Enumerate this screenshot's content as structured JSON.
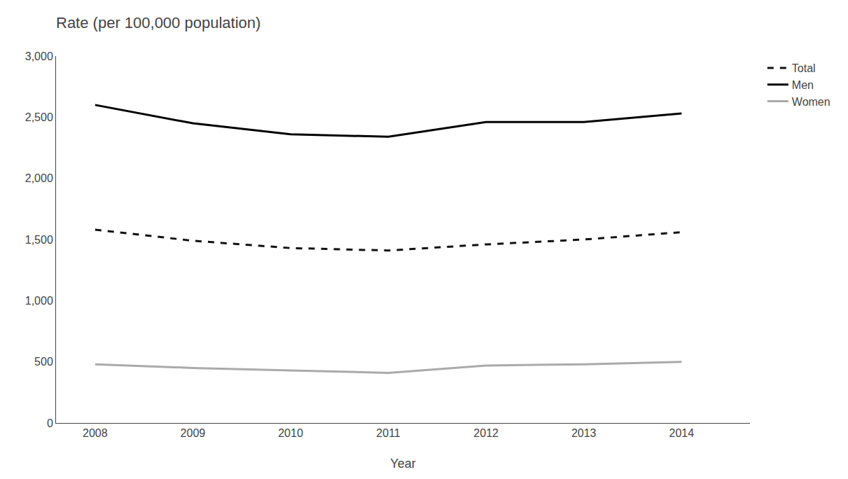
{
  "chart_data": {
    "type": "line",
    "title": "Rate (per 100,000 population)",
    "x_label": "Year",
    "x": [
      2008,
      2009,
      2010,
      2011,
      2012,
      2013,
      2014
    ],
    "series": [
      {
        "name": "Total",
        "color": "#111111",
        "line_style": "dashed",
        "values": [
          1580,
          1490,
          1430,
          1410,
          1460,
          1500,
          1560
        ]
      },
      {
        "name": "Men",
        "color": "#000000",
        "line_style": "solid",
        "values": [
          2600,
          2450,
          2360,
          2340,
          2460,
          2460,
          2530
        ]
      },
      {
        "name": "Women",
        "color": "#aaaaaa",
        "line_style": "solid",
        "values": [
          480,
          450,
          430,
          410,
          470,
          480,
          500
        ]
      }
    ],
    "xlim": [
      2007.6,
      2014.7
    ],
    "xticks": [
      2008,
      2009,
      2010,
      2011,
      2012,
      2013,
      2014
    ],
    "ylim": [
      0,
      3000
    ],
    "yticks": [
      0,
      500,
      {
        "value": 1000,
        "label": "1,000"
      },
      {
        "value": 1500,
        "label": "1,500"
      },
      {
        "value": 2000,
        "label": "2,000"
      },
      {
        "value": 2500,
        "label": "2,500"
      },
      {
        "value": 3000,
        "label": "3,000"
      }
    ],
    "legend": "upper right",
    "grid": false
  }
}
